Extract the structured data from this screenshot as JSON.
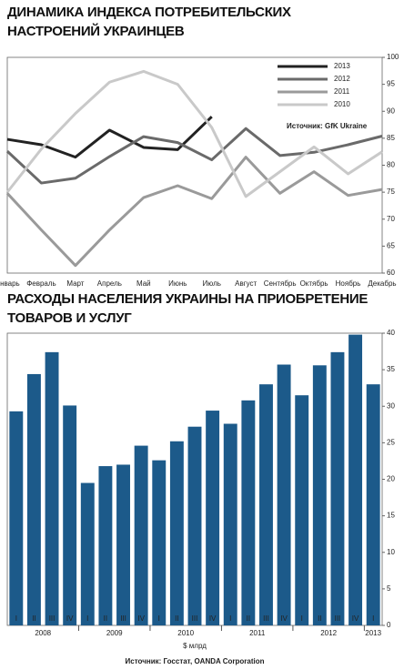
{
  "chart_data": [
    {
      "type": "line",
      "title": "ДИНАМИКА ИНДЕКСА ПОТРЕБИТЕЛЬСКИХ НАСТРОЕНИЙ УКРАИНЦЕВ",
      "source": "Источник: GfK Ukraine",
      "categories": [
        "Январь",
        "Февраль",
        "Март",
        "Апрель",
        "Май",
        "Июнь",
        "Июль",
        "Август",
        "Сентябрь",
        "Октябрь",
        "Ноябрь",
        "Декабрь"
      ],
      "series": [
        {
          "name": "2013",
          "color": "#222222",
          "values": [
            84.8,
            83.8,
            81.5,
            86.5,
            83.3,
            82.9,
            89,
            null,
            null,
            null,
            null,
            null
          ]
        },
        {
          "name": "2012",
          "color": "#6a6a6a",
          "values": [
            82.6,
            76.7,
            77.6,
            81.6,
            85.3,
            84.2,
            81,
            86.8,
            81.8,
            82.4,
            83.8,
            85.4
          ]
        },
        {
          "name": "2011",
          "color": "#9a9a9a",
          "values": [
            74.8,
            68,
            61.4,
            68,
            74,
            76.2,
            73.8,
            81.5,
            74.8,
            78.8,
            74.4,
            75.5
          ]
        },
        {
          "name": "2010",
          "color": "#c9c9c9",
          "values": [
            75,
            83,
            89.6,
            95.4,
            97.4,
            95,
            87,
            74.2,
            78.8,
            83.4,
            78.4,
            82.5
          ]
        }
      ],
      "ylim": [
        60,
        100
      ],
      "yticks": [
        60,
        65,
        70,
        75,
        80,
        85,
        90,
        95,
        100
      ],
      "grid": false,
      "legend": "upper right"
    },
    {
      "type": "bar",
      "title": "РАСХОДЫ НАСЕЛЕНИЯ УКРАИНЫ НА ПРИОБРЕТЕНИЕ ТОВАРОВ И УСЛУГ",
      "x_label": "$ млрд",
      "source": "Источник: Госстат, OANDA Corporation",
      "categories": [
        "I",
        "II",
        "III",
        "IV",
        "I",
        "II",
        "III",
        "IV",
        "I",
        "II",
        "III",
        "IV",
        "I",
        "II",
        "III",
        "IV",
        "I",
        "II",
        "III",
        "IV",
        "I"
      ],
      "year_labels": [
        "2008",
        "2009",
        "2010",
        "2011",
        "2012",
        "2013"
      ],
      "values": [
        29.3,
        34.4,
        37.4,
        30.1,
        19.5,
        21.8,
        22,
        24.6,
        22.6,
        25.2,
        27.2,
        29.4,
        27.6,
        30.8,
        33,
        35.7,
        31.5,
        35.6,
        37.4,
        39.8,
        33
      ],
      "color": "#1c5a8a",
      "ylim": [
        0,
        40
      ],
      "yticks": [
        0,
        5,
        10,
        15,
        20,
        25,
        30,
        35,
        40
      ],
      "grid": false
    }
  ]
}
